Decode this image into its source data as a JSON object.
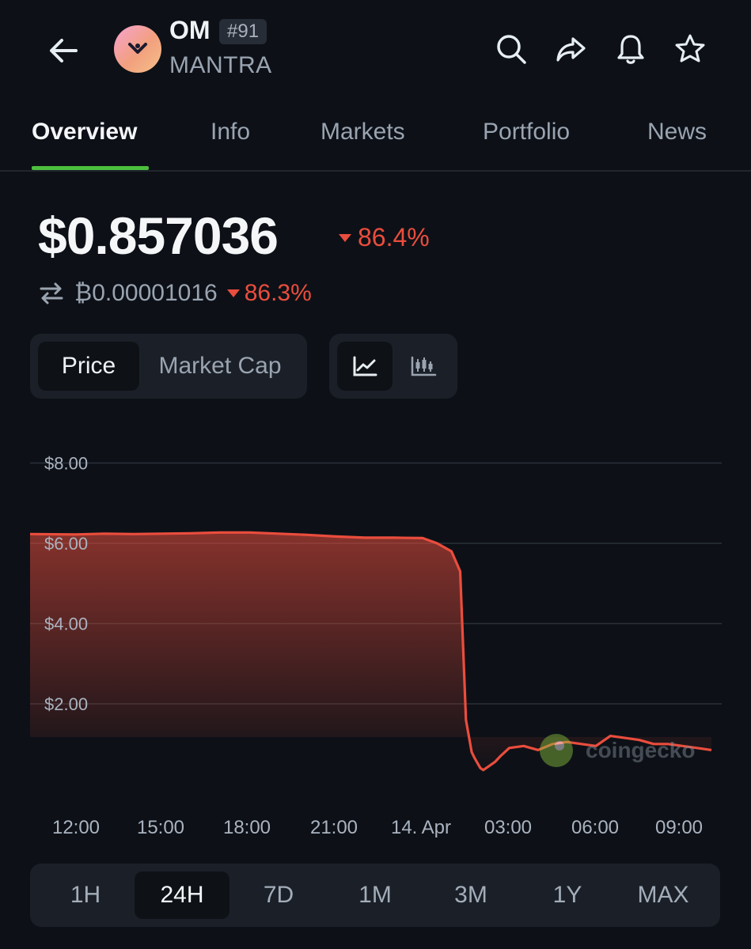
{
  "header": {
    "symbol": "OM",
    "rank": "#91",
    "name": "MANTRA",
    "icons": [
      "back-arrow-icon",
      "search-icon",
      "share-icon",
      "bell-icon",
      "star-icon"
    ]
  },
  "tabs": [
    {
      "label": "Overview",
      "active": true
    },
    {
      "label": "Info",
      "active": false
    },
    {
      "label": "Markets",
      "active": false
    },
    {
      "label": "Portfolio",
      "active": false
    },
    {
      "label": "News",
      "active": false
    }
  ],
  "price": {
    "value": "$0.857036",
    "change_24h": "86.4%",
    "btc_value": "₿0.00001016",
    "btc_change": "86.3%",
    "direction": "down"
  },
  "chart_toggle": {
    "options": [
      "Price",
      "Market Cap"
    ],
    "selected": "Price"
  },
  "chart_style": {
    "options": [
      "line-chart-icon",
      "candlestick-chart-icon"
    ],
    "selected": "line-chart-icon"
  },
  "watermark": "coingecko",
  "chart_data": {
    "type": "area",
    "title": "",
    "xlabel": "",
    "ylabel": "",
    "x_ticks": [
      "12:00",
      "15:00",
      "18:00",
      "21:00",
      "14. Apr",
      "03:00",
      "06:00",
      "09:00"
    ],
    "y_ticks": [
      "$8.00",
      "$6.00",
      "$4.00",
      "$2.00"
    ],
    "ylim": [
      0,
      8.5
    ],
    "grid": true,
    "color": "#ea4d3d",
    "series": [
      {
        "x_hours": [
          10.7,
          12,
          13,
          14,
          15,
          16,
          17,
          18,
          19,
          20,
          21,
          22,
          23,
          24,
          24.5,
          25,
          25.3,
          25.5,
          25.7,
          25.8,
          26.0,
          26.1,
          26.3,
          26.5,
          26.7,
          27,
          27.5,
          28,
          28.5,
          29,
          29.5,
          30,
          30.5,
          31,
          31.5,
          32,
          32.5,
          33,
          33.5,
          34
        ],
        "values": [
          6.23,
          6.22,
          6.24,
          6.23,
          6.24,
          6.25,
          6.27,
          6.27,
          6.24,
          6.21,
          6.17,
          6.14,
          6.14,
          6.13,
          6.0,
          5.8,
          5.3,
          1.6,
          0.8,
          0.65,
          0.4,
          0.35,
          0.45,
          0.55,
          0.7,
          0.9,
          0.95,
          0.85,
          1.0,
          1.05,
          1.0,
          0.95,
          1.2,
          1.15,
          1.1,
          1.0,
          1.0,
          0.95,
          0.9,
          0.85
        ]
      }
    ]
  },
  "ranges": [
    "1H",
    "24H",
    "7D",
    "1M",
    "3M",
    "1Y",
    "MAX"
  ],
  "selected_range": "24H",
  "colors": {
    "background": "#0d1117",
    "negative": "#ea4d3d",
    "accent": "#4cbf3e",
    "panel": "#1b2028"
  }
}
